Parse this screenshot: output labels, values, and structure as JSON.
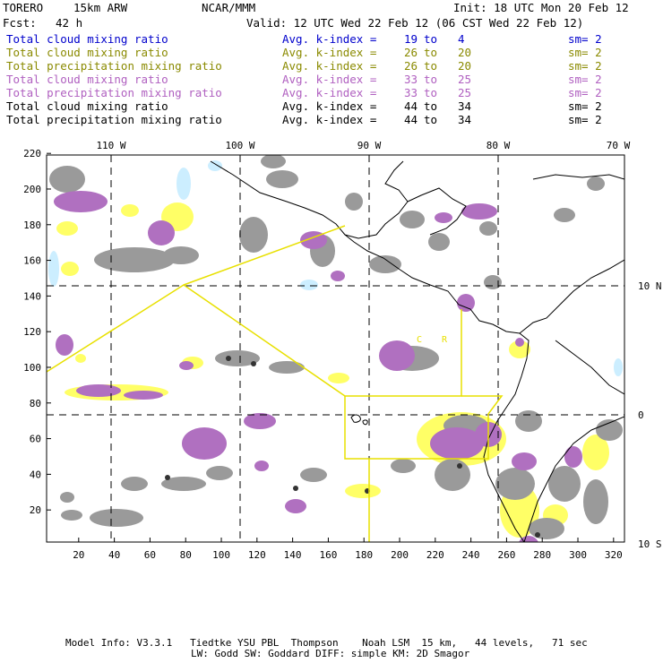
{
  "header": {
    "model": "TORERO",
    "resolution": "15km ARW",
    "center": "NCAR/MMM",
    "init": "Init: 18 UTC Mon 20 Feb 12",
    "fcst_label": "Fcst:",
    "fcst_value": "42 h",
    "valid": "Valid: 12 UTC Wed 22 Feb 12 (06 CST Wed 22 Feb 12)"
  },
  "legend": [
    {
      "field": "Total cloud mixing ratio",
      "kindex": "Avg. k-index =",
      "v1": "19",
      "to": "to",
      "v2": "4",
      "sm": "sm= 2",
      "color": "#0000cc"
    },
    {
      "field": "Total cloud mixing ratio",
      "kindex": "Avg. k-index =",
      "v1": "26",
      "to": "to",
      "v2": "20",
      "sm": "sm= 2",
      "color": "#8a8a00"
    },
    {
      "field": "Total precipitation mixing ratio",
      "kindex": "Avg. k-index =",
      "v1": "26",
      "to": "to",
      "v2": "20",
      "sm": "sm= 2",
      "color": "#8a8a00"
    },
    {
      "field": "Total cloud mixing ratio",
      "kindex": "Avg. k-index =",
      "v1": "33",
      "to": "to",
      "v2": "25",
      "sm": "sm= 2",
      "color": "#b060c0"
    },
    {
      "field": "Total precipitation mixing ratio",
      "kindex": "Avg. k-index =",
      "v1": "33",
      "to": "to",
      "v2": "25",
      "sm": "sm= 2",
      "color": "#b060c0"
    },
    {
      "field": "Total cloud mixing ratio",
      "kindex": "Avg. k-index =",
      "v1": "44",
      "to": "to",
      "v2": "34",
      "sm": "sm= 2",
      "color": "#000000"
    },
    {
      "field": "Total precipitation mixing ratio",
      "kindex": "Avg. k-index =",
      "v1": "44",
      "to": "to",
      "v2": "34",
      "sm": "sm= 2",
      "color": "#000000"
    }
  ],
  "map": {
    "lon_labels": [
      "110 W",
      "100 W",
      "90 W",
      "80 W",
      "70 W"
    ],
    "lat_labels": [
      "10 N",
      "0",
      "10 S"
    ],
    "y_ticks": [
      "220",
      "200",
      "180",
      "160",
      "140",
      "120",
      "100",
      "80",
      "60",
      "40",
      "20"
    ],
    "x_ticks": [
      "20",
      "40",
      "60",
      "80",
      "100",
      "120",
      "140",
      "160",
      "180",
      "200",
      "220",
      "240",
      "260",
      "280",
      "300",
      "320"
    ],
    "annotations": [
      "C",
      "R"
    ],
    "colors": {
      "gray": "#9a9a9a",
      "purple": "#b070c0",
      "yellow": "#ffff66",
      "cyan": "#cceeff",
      "box": "#e8e000"
    }
  },
  "footer": {
    "line1": "Model Info: V3.3.1   Tiedtke YSU PBL  Thompson    Noah LSM  15 km,   44 levels,   71 sec",
    "line2": "LW: Godd SW: Goddard DIFF: simple KM: 2D Smagor"
  }
}
